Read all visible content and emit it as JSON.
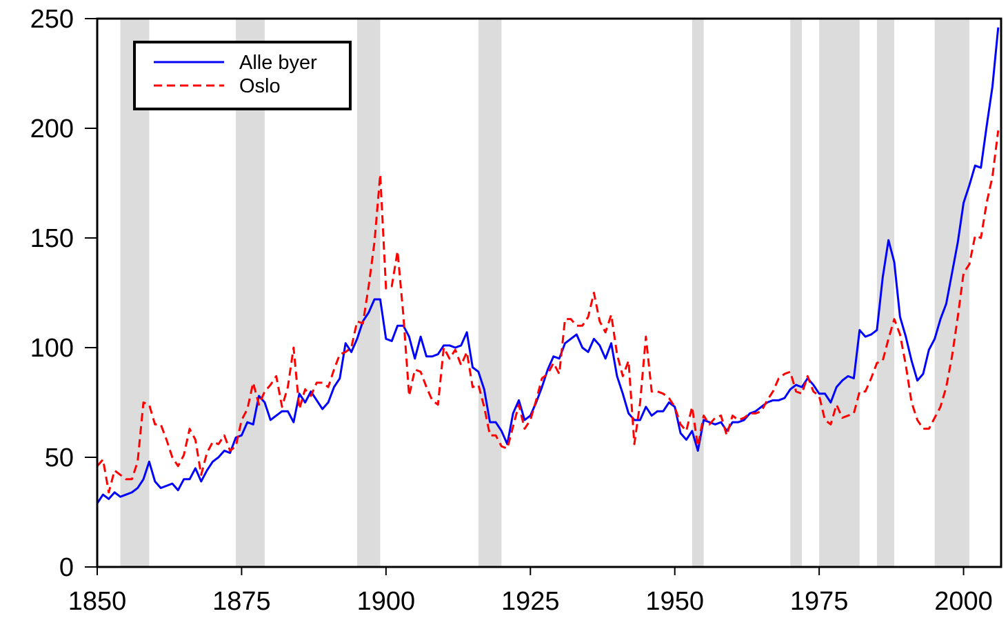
{
  "chart_data": {
    "type": "line",
    "x": [
      1850,
      1851,
      1852,
      1853,
      1854,
      1855,
      1856,
      1857,
      1858,
      1859,
      1860,
      1861,
      1862,
      1863,
      1864,
      1865,
      1866,
      1867,
      1868,
      1869,
      1870,
      1871,
      1872,
      1873,
      1874,
      1875,
      1876,
      1877,
      1878,
      1879,
      1880,
      1881,
      1882,
      1883,
      1884,
      1885,
      1886,
      1887,
      1888,
      1889,
      1890,
      1891,
      1892,
      1893,
      1894,
      1895,
      1896,
      1897,
      1898,
      1899,
      1900,
      1901,
      1902,
      1903,
      1904,
      1905,
      1906,
      1907,
      1908,
      1909,
      1910,
      1911,
      1912,
      1913,
      1914,
      1915,
      1916,
      1917,
      1918,
      1919,
      1920,
      1921,
      1922,
      1923,
      1924,
      1925,
      1926,
      1927,
      1928,
      1929,
      1930,
      1931,
      1932,
      1933,
      1934,
      1935,
      1936,
      1937,
      1938,
      1939,
      1940,
      1941,
      1942,
      1943,
      1944,
      1945,
      1946,
      1947,
      1948,
      1949,
      1950,
      1951,
      1952,
      1953,
      1954,
      1955,
      1956,
      1957,
      1958,
      1959,
      1960,
      1961,
      1962,
      1963,
      1964,
      1965,
      1966,
      1967,
      1968,
      1969,
      1970,
      1971,
      1972,
      1973,
      1974,
      1975,
      1976,
      1977,
      1978,
      1979,
      1980,
      1981,
      1982,
      1983,
      1984,
      1985,
      1986,
      1987,
      1988,
      1989,
      1990,
      1991,
      1992,
      1993,
      1994,
      1995,
      1996,
      1997,
      1998,
      1999,
      2000,
      2001,
      2002,
      2003,
      2004,
      2005,
      2006
    ],
    "series": [
      {
        "name": "Alle byer",
        "color": "#0000ff",
        "dashed": false,
        "values": [
          29,
          33,
          31,
          34,
          32,
          33,
          34,
          36,
          40,
          48,
          39,
          36,
          37,
          38,
          35,
          40,
          40,
          45,
          39,
          44,
          48,
          50,
          53,
          52,
          59,
          60,
          66,
          65,
          78,
          75,
          67,
          69,
          71,
          71,
          66,
          79,
          75,
          80,
          76,
          72,
          75,
          82,
          86,
          102,
          98,
          104,
          112,
          116,
          122,
          122,
          104,
          103,
          110,
          110,
          105,
          95,
          105,
          96,
          96,
          97,
          101,
          101,
          100,
          101,
          107,
          91,
          89,
          81,
          66,
          66,
          62,
          56,
          70,
          76,
          67,
          69,
          75,
          82,
          90,
          96,
          95,
          102,
          104,
          106,
          100,
          98,
          104,
          101,
          95,
          102,
          87,
          79,
          70,
          67,
          67,
          73,
          69,
          71,
          71,
          75,
          73,
          61,
          58,
          62,
          53,
          67,
          66,
          65,
          66,
          62,
          66,
          66,
          67,
          70,
          71,
          73,
          75,
          76,
          76,
          77,
          81,
          83,
          82,
          86,
          83,
          79,
          79,
          75,
          82,
          85,
          87,
          86,
          108,
          105,
          106,
          108,
          132,
          149,
          139,
          114,
          105,
          94,
          85,
          88,
          99,
          104,
          113,
          120,
          134,
          148,
          166,
          174,
          183,
          182,
          201,
          219,
          246
        ]
      },
      {
        "name": "Oslo",
        "color": "#ff0000",
        "dashed": true,
        "values": [
          46,
          49,
          34,
          44,
          42,
          40,
          40,
          48,
          75,
          74,
          65,
          65,
          58,
          50,
          46,
          51,
          63,
          58,
          42,
          52,
          57,
          56,
          60,
          53,
          55,
          67,
          72,
          84,
          74,
          80,
          83,
          87,
          73,
          82,
          100,
          72,
          81,
          78,
          84,
          84,
          82,
          90,
          97,
          98,
          100,
          112,
          111,
          128,
          148,
          179,
          127,
          128,
          144,
          115,
          78,
          90,
          89,
          82,
          76,
          74,
          100,
          95,
          99,
          92,
          98,
          82,
          83,
          73,
          60,
          60,
          55,
          54,
          64,
          74,
          63,
          67,
          76,
          86,
          88,
          93,
          88,
          113,
          113,
          110,
          110,
          114,
          125,
          112,
          107,
          115,
          97,
          87,
          94,
          56,
          75,
          105,
          80,
          80,
          79,
          77,
          73,
          65,
          62,
          73,
          55,
          69,
          65,
          68,
          69,
          60,
          69,
          67,
          68,
          70,
          70,
          71,
          76,
          80,
          86,
          88,
          89,
          80,
          79,
          87,
          80,
          78,
          67,
          65,
          74,
          68,
          69,
          70,
          80,
          80,
          86,
          93,
          94,
          104,
          113,
          106,
          92,
          75,
          67,
          63,
          63,
          68,
          73,
          82,
          96,
          114,
          134,
          138,
          151,
          150,
          166,
          178,
          199
        ]
      }
    ],
    "bands": [
      [
        1854,
        1859
      ],
      [
        1874,
        1879
      ],
      [
        1895,
        1899
      ],
      [
        1916,
        1920
      ],
      [
        1953,
        1955
      ],
      [
        1970,
        1972
      ],
      [
        1975,
        1982
      ],
      [
        1985,
        1988
      ],
      [
        1995,
        2001
      ]
    ],
    "band_color": "#dcdcdc",
    "xlim": [
      1850,
      2006.5
    ],
    "xticks": [
      1850,
      1875,
      1900,
      1925,
      1950,
      1975,
      2000
    ],
    "ylim": [
      0,
      250
    ],
    "yticks": [
      0,
      50,
      100,
      150,
      200,
      250
    ],
    "legend": "upper left"
  }
}
